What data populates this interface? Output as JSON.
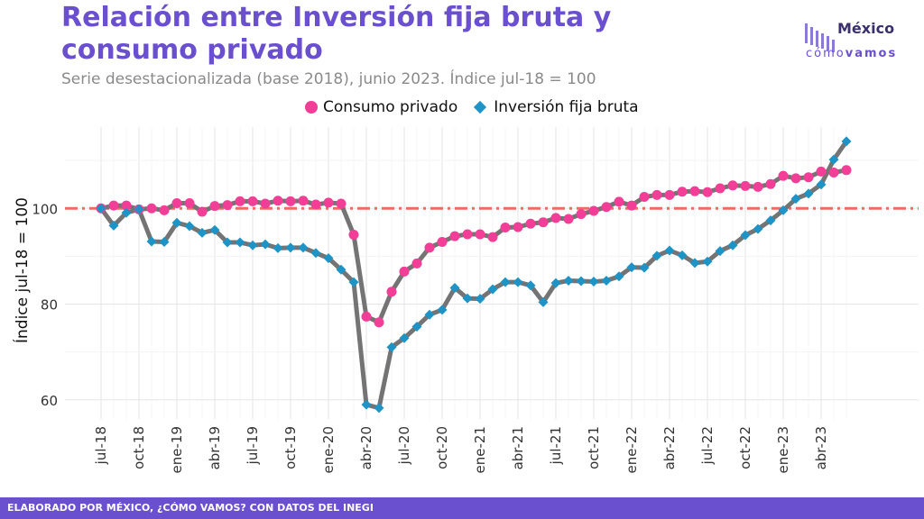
{
  "header": {
    "title": "Relación entre Inversión fija bruta y consumo privado",
    "subtitle": "Serie desestacionalizada (base 2018), junio 2023. Índice jul-18 = 100"
  },
  "logo": {
    "line1": "México",
    "line2a": "cómo",
    "line2b": "vamos"
  },
  "footer": {
    "text": "ELABORADO POR MÉXICO, ¿CÓMO VAMOS? CON DATOS DEL INEGI"
  },
  "chart_data": {
    "type": "line",
    "title": "Relación entre Inversión fija bruta y consumo privado",
    "subtitle": "Serie desestacionalizada (base 2018), junio 2023. Índice jul-18 = 100",
    "ylabel": "Índice jul-18 = 100",
    "xlabel": "",
    "ylim": [
      56,
      117
    ],
    "yticks": [
      60,
      80,
      100
    ],
    "reference_line": 100,
    "x_tick_labels": [
      "jul-18",
      "oct-18",
      "ene-19",
      "abr-19",
      "jul-19",
      "oct-19",
      "ene-20",
      "abr-20",
      "jul-20",
      "oct-20",
      "ene-21",
      "abr-21",
      "jul-21",
      "oct-21",
      "ene-22",
      "abr-22",
      "jul-22",
      "oct-22",
      "ene-23",
      "abr-23"
    ],
    "x": [
      "jul-18",
      "ago-18",
      "sep-18",
      "oct-18",
      "nov-18",
      "dic-18",
      "ene-19",
      "feb-19",
      "mar-19",
      "abr-19",
      "may-19",
      "jun-19",
      "jul-19",
      "ago-19",
      "sep-19",
      "oct-19",
      "nov-19",
      "dic-19",
      "ene-20",
      "feb-20",
      "mar-20",
      "abr-20",
      "may-20",
      "jun-20",
      "jul-20",
      "ago-20",
      "sep-20",
      "oct-20",
      "nov-20",
      "dic-20",
      "ene-21",
      "feb-21",
      "mar-21",
      "abr-21",
      "may-21",
      "jun-21",
      "jul-21",
      "ago-21",
      "sep-21",
      "oct-21",
      "nov-21",
      "dic-21",
      "ene-22",
      "feb-22",
      "mar-22",
      "abr-22",
      "may-22",
      "jun-22",
      "jul-22",
      "ago-22",
      "sep-22",
      "oct-22",
      "nov-22",
      "dic-22",
      "ene-23",
      "feb-23",
      "mar-23",
      "abr-23",
      "may-23",
      "jun-23"
    ],
    "legend_position": "top-right",
    "grid": true,
    "series": [
      {
        "name": "Consumo privado",
        "color": "#f23e96",
        "marker": "circle",
        "values": [
          100,
          100.6,
          100.6,
          99.8,
          100,
          99.6,
          101.1,
          101.1,
          99.3,
          100.5,
          100.7,
          101.5,
          101.5,
          101,
          101.6,
          101.5,
          101.6,
          100.8,
          101.2,
          101,
          94.5,
          77.4,
          76.2,
          82.6,
          86.8,
          88.5,
          91.8,
          93,
          94.2,
          94.6,
          94.6,
          94,
          96,
          96.1,
          96.8,
          97.1,
          98,
          97.8,
          98.8,
          99.5,
          100.3,
          101.4,
          100.6,
          102.4,
          102.8,
          102.8,
          103.5,
          103.6,
          103.4,
          104.2,
          104.8,
          104.7,
          104.5,
          105.1,
          106.8,
          106.3,
          106.5,
          107.7,
          107.5,
          108
        ]
      },
      {
        "name": "Inversión fija bruta",
        "color": "#1e94c6",
        "marker": "diamond",
        "values": [
          100,
          96.4,
          99.1,
          99.8,
          93.1,
          93,
          97,
          96.3,
          94.9,
          95.5,
          92.9,
          92.9,
          92.3,
          92.5,
          91.7,
          91.8,
          91.8,
          90.7,
          89.6,
          87.2,
          84.6,
          59,
          58.3,
          71,
          72.9,
          75.3,
          77.8,
          78.8,
          83.4,
          81.2,
          81.1,
          83.1,
          84.6,
          84.6,
          83.9,
          80.4,
          84.4,
          84.9,
          84.8,
          84.7,
          84.9,
          85.8,
          87.7,
          87.6,
          90.1,
          91.2,
          90.2,
          88.6,
          88.9,
          91.1,
          92.3,
          94.4,
          95.7,
          97.5,
          99.6,
          102,
          103.1,
          105,
          110.2,
          114
        ]
      }
    ]
  }
}
